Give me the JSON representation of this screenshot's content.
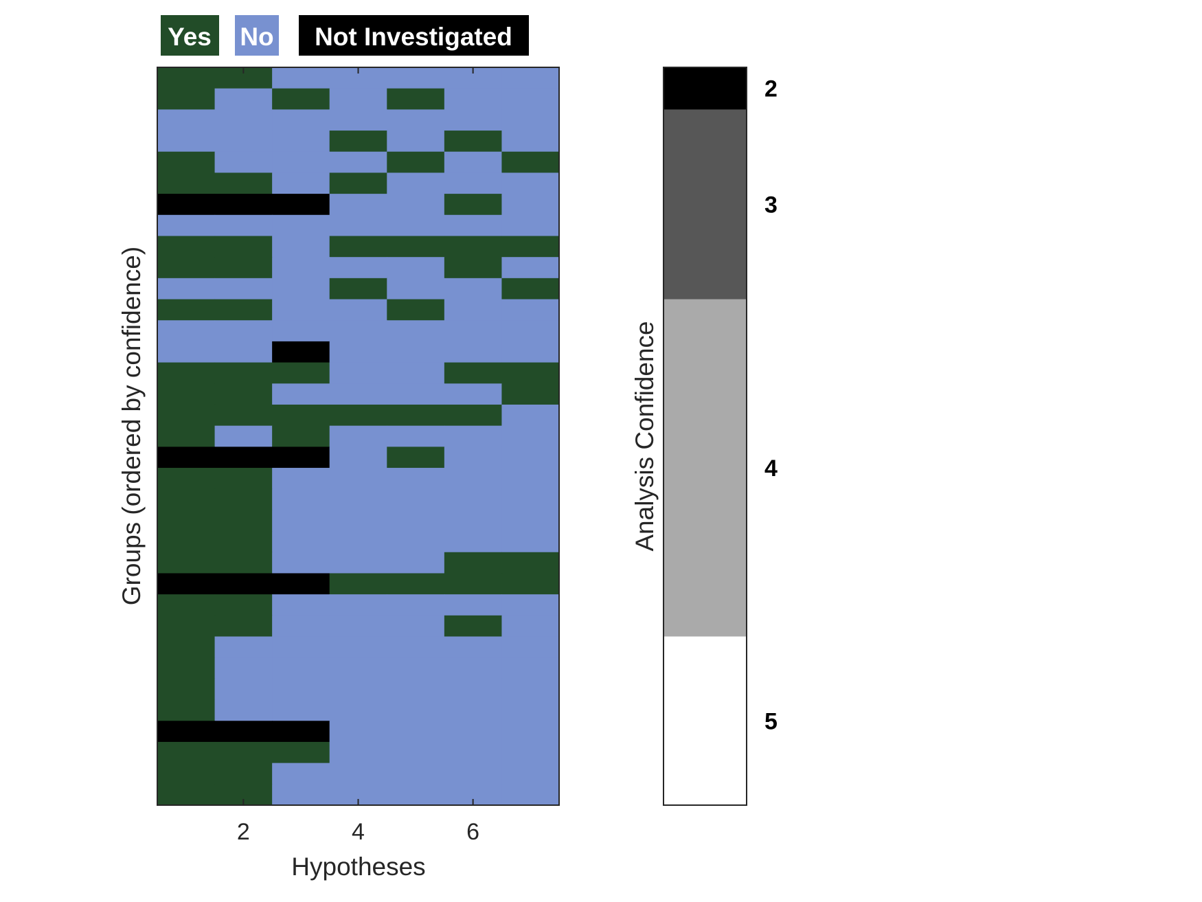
{
  "chart_data": {
    "type": "heatmap",
    "xlabel": "Hypotheses",
    "ylabel": "Groups (ordered by confidence)",
    "x_ticks": [
      2,
      4,
      6
    ],
    "n_hypotheses": 7,
    "n_groups": 35,
    "legend": [
      {
        "label": "Yes",
        "color": "#224c28"
      },
      {
        "label": "No",
        "color": "#7891d0"
      },
      {
        "label": "Not Investigated",
        "color": "#000000"
      }
    ],
    "matrix": [
      [
        "Y",
        "Y",
        "N",
        "N",
        "N",
        "N",
        "N"
      ],
      [
        "Y",
        "N",
        "Y",
        "N",
        "Y",
        "N",
        "N"
      ],
      [
        "N",
        "N",
        "N",
        "N",
        "N",
        "N",
        "N"
      ],
      [
        "N",
        "N",
        "N",
        "Y",
        "N",
        "Y",
        "N"
      ],
      [
        "Y",
        "N",
        "N",
        "N",
        "Y",
        "N",
        "Y"
      ],
      [
        "Y",
        "Y",
        "N",
        "Y",
        "N",
        "N",
        "N"
      ],
      [
        "X",
        "X",
        "X",
        "N",
        "N",
        "Y",
        "N"
      ],
      [
        "N",
        "N",
        "N",
        "N",
        "N",
        "N",
        "N"
      ],
      [
        "Y",
        "Y",
        "N",
        "Y",
        "Y",
        "Y",
        "Y"
      ],
      [
        "Y",
        "Y",
        "N",
        "N",
        "N",
        "Y",
        "N"
      ],
      [
        "N",
        "N",
        "N",
        "Y",
        "N",
        "N",
        "Y"
      ],
      [
        "Y",
        "Y",
        "N",
        "N",
        "Y",
        "N",
        "N"
      ],
      [
        "N",
        "N",
        "N",
        "N",
        "N",
        "N",
        "N"
      ],
      [
        "N",
        "N",
        "X",
        "N",
        "N",
        "N",
        "N"
      ],
      [
        "Y",
        "Y",
        "Y",
        "N",
        "N",
        "Y",
        "Y"
      ],
      [
        "Y",
        "Y",
        "N",
        "N",
        "N",
        "N",
        "Y"
      ],
      [
        "Y",
        "Y",
        "Y",
        "Y",
        "Y",
        "Y",
        "N"
      ],
      [
        "Y",
        "N",
        "Y",
        "N",
        "N",
        "N",
        "N"
      ],
      [
        "X",
        "X",
        "X",
        "N",
        "Y",
        "N",
        "N"
      ],
      [
        "Y",
        "Y",
        "N",
        "N",
        "N",
        "N",
        "N"
      ],
      [
        "Y",
        "Y",
        "N",
        "N",
        "N",
        "N",
        "N"
      ],
      [
        "Y",
        "Y",
        "N",
        "N",
        "N",
        "N",
        "N"
      ],
      [
        "Y",
        "Y",
        "N",
        "N",
        "N",
        "N",
        "N"
      ],
      [
        "Y",
        "Y",
        "N",
        "N",
        "N",
        "Y",
        "Y"
      ],
      [
        "X",
        "X",
        "X",
        "Y",
        "Y",
        "Y",
        "Y"
      ],
      [
        "Y",
        "Y",
        "N",
        "N",
        "N",
        "N",
        "N"
      ],
      [
        "Y",
        "Y",
        "N",
        "N",
        "N",
        "Y",
        "N"
      ],
      [
        "Y",
        "N",
        "N",
        "N",
        "N",
        "N",
        "N"
      ],
      [
        "Y",
        "N",
        "N",
        "N",
        "N",
        "N",
        "N"
      ],
      [
        "Y",
        "N",
        "N",
        "N",
        "N",
        "N",
        "N"
      ],
      [
        "Y",
        "N",
        "N",
        "N",
        "N",
        "N",
        "N"
      ],
      [
        "X",
        "X",
        "X",
        "N",
        "N",
        "N",
        "N"
      ],
      [
        "Y",
        "Y",
        "Y",
        "N",
        "N",
        "N",
        "N"
      ],
      [
        "Y",
        "Y",
        "N",
        "N",
        "N",
        "N",
        "N"
      ],
      [
        "Y",
        "Y",
        "N",
        "N",
        "N",
        "N",
        "N"
      ]
    ],
    "colorbar": {
      "label": "Analysis Confidence",
      "segments": [
        {
          "level": "2",
          "group_count": 2,
          "color": "#000000"
        },
        {
          "level": "3",
          "group_count": 9,
          "color": "#575757"
        },
        {
          "level": "4",
          "group_count": 16,
          "color": "#aaaaaa"
        },
        {
          "level": "5",
          "group_count": 8,
          "color": "#ffffff"
        }
      ]
    }
  }
}
